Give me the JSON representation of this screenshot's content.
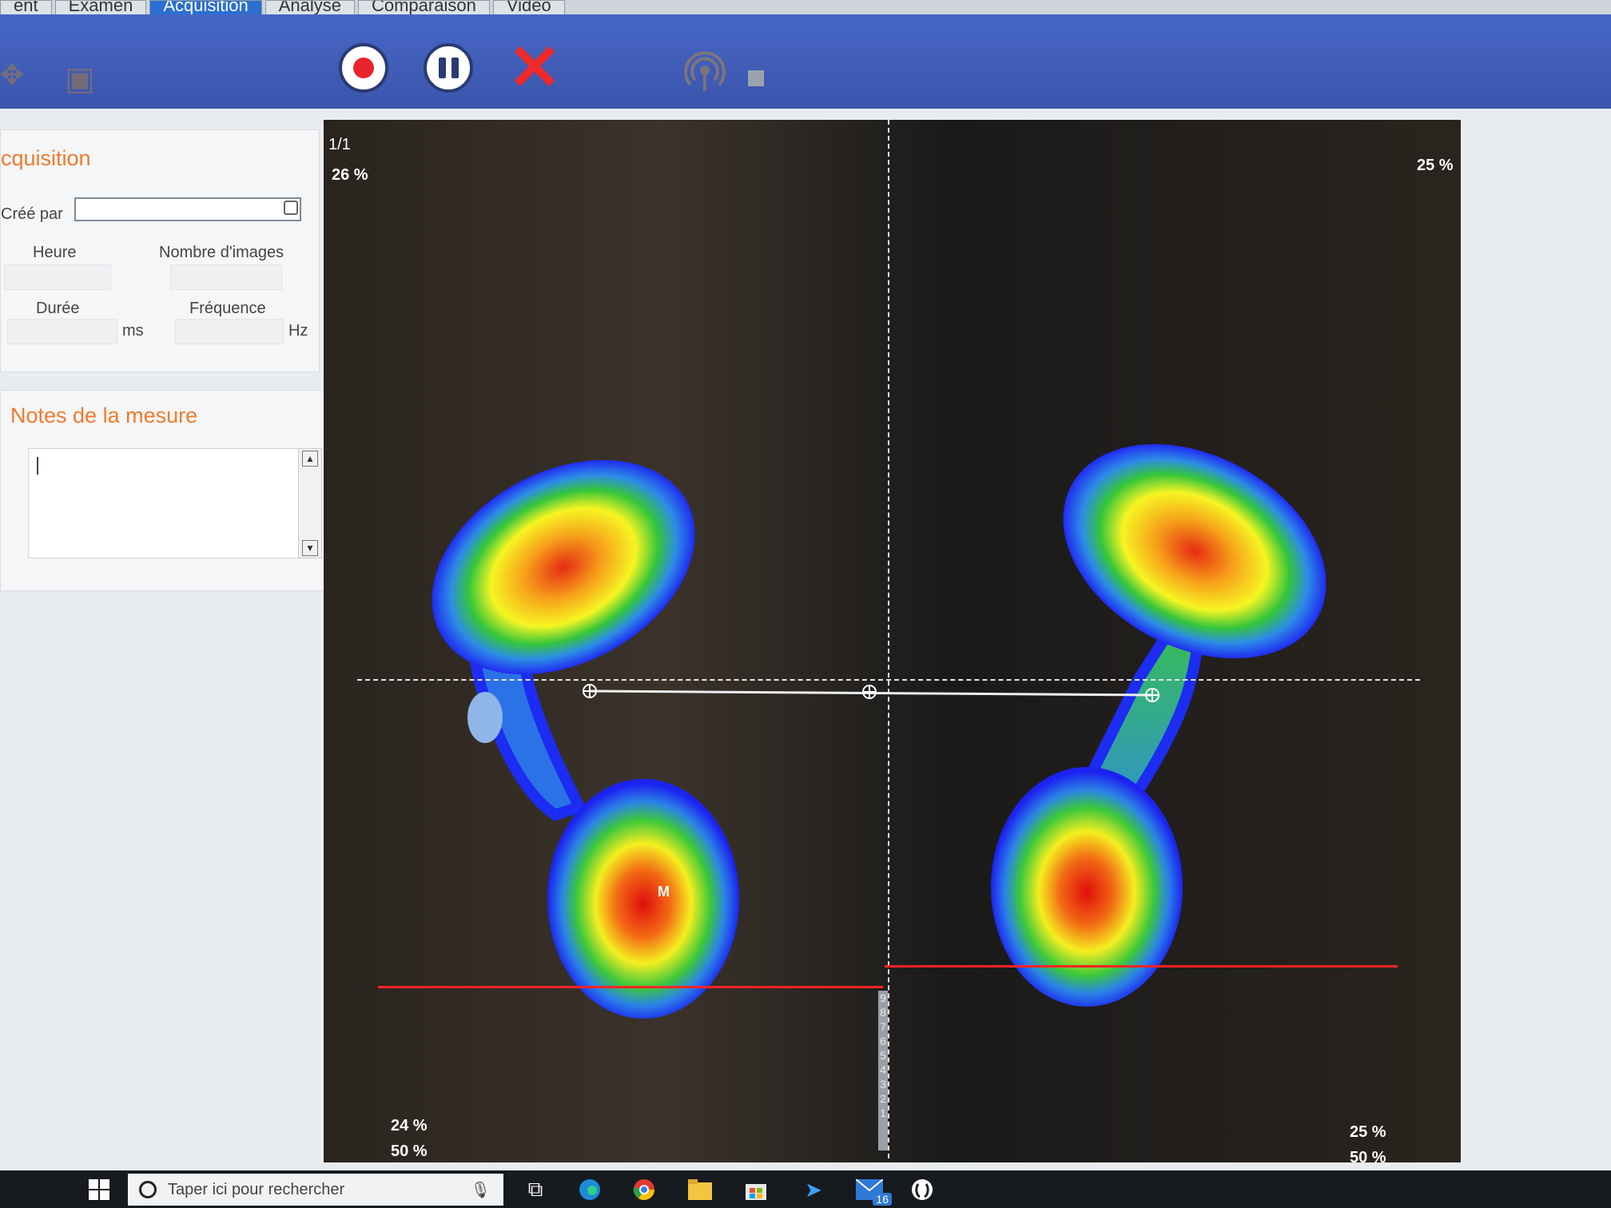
{
  "tabs": [
    "ent",
    "Examen",
    "Acquisition",
    "Analyse",
    "Comparaison",
    "Vidéo"
  ],
  "toolbar": {
    "record_icon": "record-icon",
    "pause_icon": "pause-icon",
    "cancel_icon": "close-icon",
    "sensor_icon": "antenna-icon",
    "stop_icon": "stop-icon",
    "cancel_glyph": "✕"
  },
  "acquisition_panel": {
    "title": "cquisition",
    "created_by_label": "Créé par",
    "heure_label": "Heure",
    "nombre_images_label": "Nombre d'images",
    "duree_label": "Durée",
    "duree_unit": "ms",
    "frequence_label": "Fréquence",
    "frequence_unit": "Hz"
  },
  "notes_panel": {
    "title": "Notes de la mesure",
    "text": ""
  },
  "plot": {
    "frame_counter": "1/1",
    "top_left_percent": "26 %",
    "top_right_percent": "25 %",
    "bottom_left_percent_a": "24 %",
    "bottom_left_percent_b": "50 %",
    "bottom_right_percent_a": "25 %",
    "bottom_right_percent_b": "50 %",
    "heel_marker": "M",
    "scale_numbers": [
      "9",
      "8",
      "7",
      "6",
      "5",
      "4",
      "3",
      "2",
      "1"
    ]
  },
  "taskbar": {
    "search_placeholder": "Taper ici pour rechercher",
    "notification_count": "16"
  },
  "colors": {
    "toolbar_blue": "#3a55ad",
    "accent_orange": "#f07a2c",
    "record_red": "#e8242a",
    "red_line": "#ff2323"
  }
}
